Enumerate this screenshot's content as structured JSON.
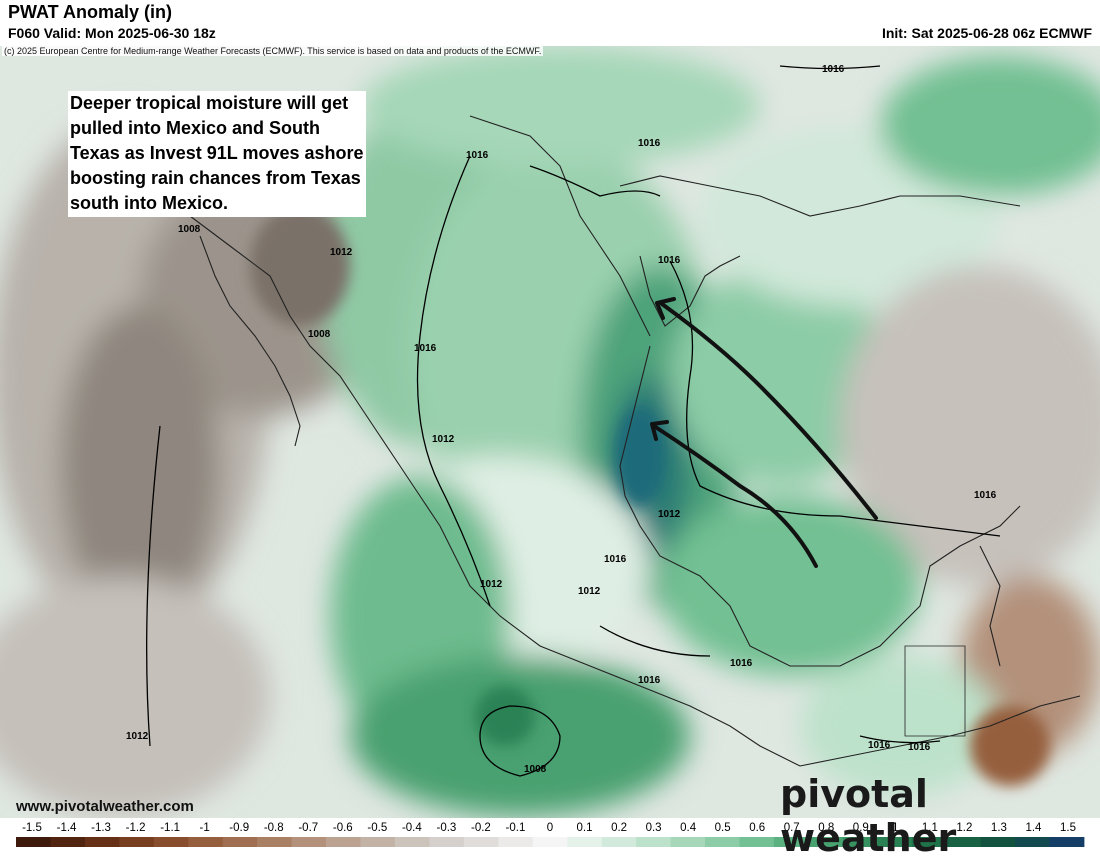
{
  "header": {
    "title": "PWAT Anomaly (in)",
    "subtitle": "F060 Valid: Mon 2025-06-30 18z",
    "init": "Init: Sat 2025-06-28 06z ECMWF",
    "copyright": "(c) 2025 European Centre for Medium-range Weather Forecasts (ECMWF). This service is based on data and products of the ECMWF."
  },
  "annotation": {
    "text": "Deeper tropical moisture will get\npulled into Mexico and South\nTexas as Invest 91L moves ashore\nboosting rain chances from Texas\nsouth into Mexico."
  },
  "footer": {
    "site": "www.pivotalweather.com",
    "brand": "pivotal weather"
  },
  "contour_labels": [
    "1016",
    "1016",
    "1016",
    "1016",
    "1008",
    "1012",
    "1008",
    "1016",
    "1012",
    "1016",
    "1012",
    "1016",
    "1012",
    "1012",
    "1016",
    "1016",
    "1016",
    "1016",
    "1012",
    "1008"
  ],
  "colorbar": {
    "ticks": [
      "-1.5",
      "-1.4",
      "-1.3",
      "-1.2",
      "-1.1",
      "-1",
      "-0.9",
      "-0.8",
      "-0.7",
      "-0.6",
      "-0.5",
      "-0.4",
      "-0.3",
      "-0.2",
      "-0.1",
      "0",
      "0.1",
      "0.2",
      "0.3",
      "0.4",
      "0.5",
      "0.6",
      "0.7",
      "0.8",
      "0.9",
      "1",
      "1.1",
      "1.2",
      "1.3",
      "1.4",
      "1.5"
    ],
    "colors": [
      "#3d1a0c",
      "#51240f",
      "#653016",
      "#773e1f",
      "#874d2c",
      "#955e3d",
      "#a06f51",
      "#aa8065",
      "#b3917a",
      "#bba291",
      "#c3b3a6",
      "#ccc3bb",
      "#d5d0cb",
      "#e0dcd9",
      "#eceae8",
      "#f5f5f5",
      "#e5f2ea",
      "#d2eadb",
      "#bde2cb",
      "#a5d7b8",
      "#8ccca6",
      "#72c093",
      "#5bb280",
      "#48a26f",
      "#379260",
      "#2a8254",
      "#1f724a",
      "#186243",
      "#13523e",
      "#124a50",
      "#143e66"
    ]
  },
  "colors": {
    "arrow": "#111111",
    "contour": "#000000",
    "ocean_dry": "#a9a29b",
    "moist": "#5fb885",
    "very_moist": "#1d6a7a"
  }
}
